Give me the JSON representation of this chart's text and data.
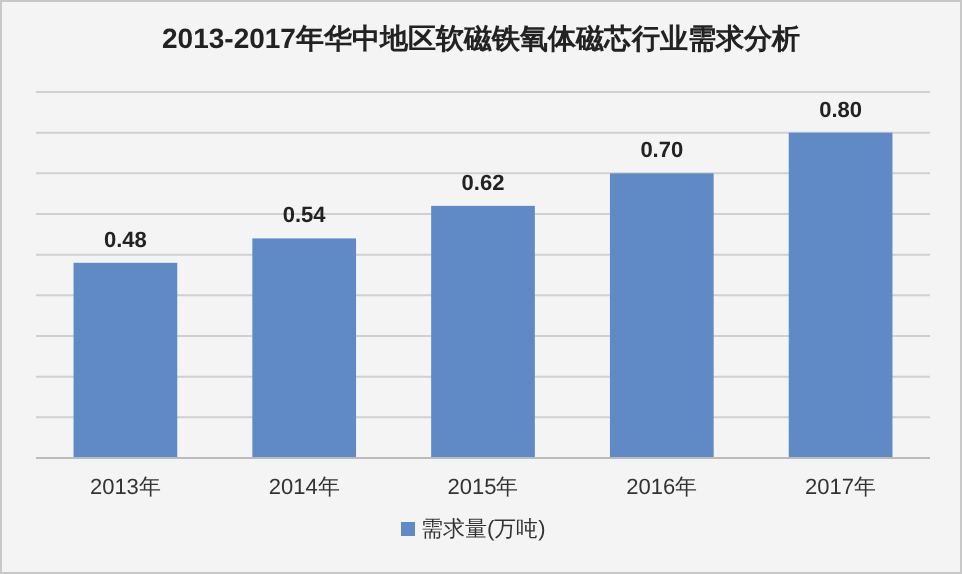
{
  "chart_data": {
    "type": "bar",
    "title": "2013-2017年华中地区软磁铁氧体磁芯行业需求分析",
    "categories": [
      "2013年",
      "2014年",
      "2015年",
      "2016年",
      "2017年"
    ],
    "series": [
      {
        "name": "需求量(万吨)",
        "color": "#5f8ac6",
        "values": [
          0.48,
          0.54,
          0.62,
          0.7,
          0.8
        ],
        "value_labels": [
          "0.48",
          "0.54",
          "0.62",
          "0.70",
          "0.80"
        ]
      }
    ],
    "ylim": [
      0,
      0.9
    ],
    "yticks": [
      {
        "value": 0,
        "label": null
      },
      {
        "value": 0.1,
        "label": null
      },
      {
        "value": 0.2,
        "label": null
      },
      {
        "value": 0.3,
        "label": null
      },
      {
        "value": 0.4,
        "label": null
      },
      {
        "value": 0.5,
        "label": null
      },
      {
        "value": 0.6,
        "label": null
      },
      {
        "value": 0.7,
        "label": null
      },
      {
        "value": 0.8,
        "label": null
      },
      {
        "value": 0.9,
        "label": null
      }
    ],
    "tick_labels": "x",
    "grid": "y",
    "legend": "bottom"
  }
}
